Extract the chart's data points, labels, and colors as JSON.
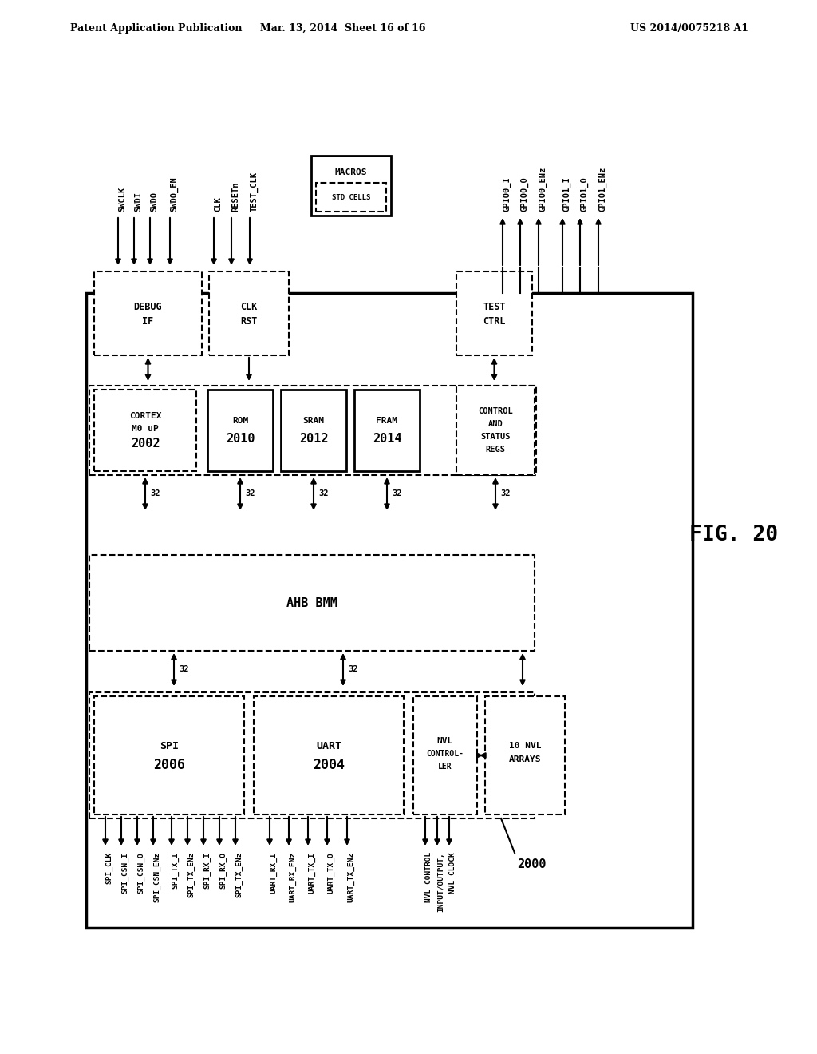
{
  "title_left": "Patent Application Publication",
  "title_mid": "Mar. 13, 2014  Sheet 16 of 16",
  "title_right": "US 2014/0075218 A1",
  "fig_label": "FIG. 20",
  "diagram_ref": "2000",
  "background": "#ffffff",
  "text_color": "#000000",
  "top_signals_left": [
    "SWCLK",
    "SWDI",
    "SWDO",
    "SWDO_EN"
  ],
  "top_signals_mid": [
    "CLK",
    "RESETn",
    "TEST_CLK"
  ],
  "top_signals_right": [
    "GPIO0_I",
    "GPIO0_O",
    "GPIO0_ENz",
    "GPIO1_I",
    "GPIO1_O",
    "GPIO1_ENz"
  ],
  "spi_signals": [
    "SPI_CLK",
    "SPI_CSN_I",
    "SPI_CSN_O",
    "SPI_CSN_ENz",
    "SPI_TX_I",
    "SPI_TX_ENz",
    "SPI_RX_I",
    "SPI_RX_O",
    "SPI_TX_ENz"
  ],
  "uart_signals": [
    "UART_RX_I",
    "UART_RX_ENz",
    "UART_TX_I",
    "UART_TX_O",
    "UART_TX_ENz"
  ],
  "nvl_signals": [
    "NVL CONTROL",
    "INPUT/OUTPUT,",
    "NVL CLOCK"
  ]
}
